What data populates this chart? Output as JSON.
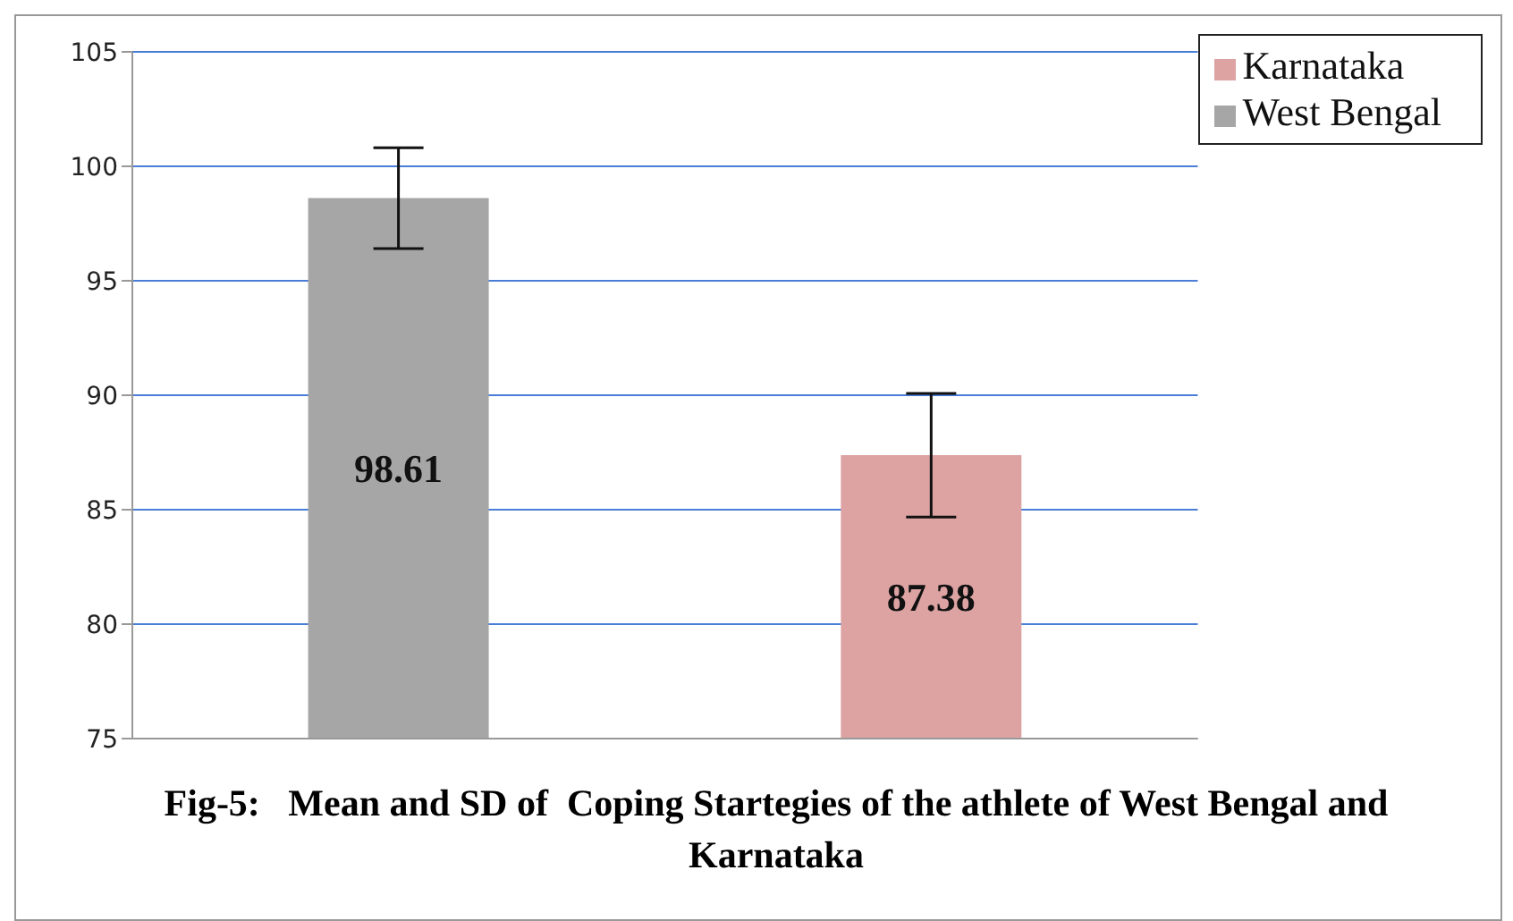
{
  "chart_data": {
    "type": "bar",
    "title": "Fig-5:   Mean and SD of  Coping Startegies of the athlete of West Bengal and Karnataka",
    "categories": [
      null,
      null
    ],
    "series": [
      {
        "name": "West Bengal",
        "color": "#a6a6a6",
        "values": [
          98.61,
          null
        ],
        "errors": [
          2.2,
          null
        ]
      },
      {
        "name": "Karnataka",
        "color": "#dda3a3",
        "values": [
          null,
          87.38
        ],
        "errors": [
          null,
          2.7
        ]
      }
    ],
    "ylim": [
      75,
      105
    ],
    "yticks": [
      75,
      80,
      85,
      90,
      95,
      100,
      105
    ],
    "grid": "y",
    "legend": "top right",
    "data_labels": true
  }
}
